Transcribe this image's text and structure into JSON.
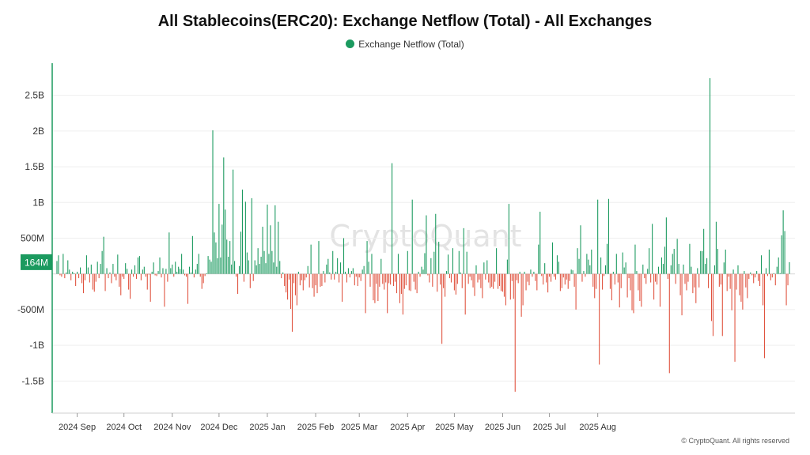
{
  "chart_data": {
    "type": "bar",
    "title": "All Stablecoins(ERC20): Exchange Netflow (Total) - All Exchanges",
    "legend": [
      {
        "name": "Exchange Netflow (Total)",
        "color": "#1b9a5f"
      }
    ],
    "legend_position": "top-center",
    "xlabel": "",
    "ylabel": "",
    "ylim": [
      -1950000000,
      2950000000
    ],
    "y_ticks": [
      {
        "value": 2500000000,
        "label": "2.5B"
      },
      {
        "value": 2000000000,
        "label": "2B"
      },
      {
        "value": 1500000000,
        "label": "1.5B"
      },
      {
        "value": 1000000000,
        "label": "1B"
      },
      {
        "value": 500000000,
        "label": "500M"
      },
      {
        "value": -500000000,
        "label": "-500M"
      },
      {
        "value": -1000000000,
        "label": "-1B"
      },
      {
        "value": -1500000000,
        "label": "-1.5B"
      }
    ],
    "x_ticks": [
      {
        "date": "2024-09-01",
        "label": "2024 Sep"
      },
      {
        "date": "2024-10-01",
        "label": "2024 Oct"
      },
      {
        "date": "2024-11-01",
        "label": "2024 Nov"
      },
      {
        "date": "2024-12-01",
        "label": "2024 Dec"
      },
      {
        "date": "2025-01-01",
        "label": "2025 Jan"
      },
      {
        "date": "2025-02-01",
        "label": "2025 Feb"
      },
      {
        "date": "2025-03-01",
        "label": "2025 Mar"
      },
      {
        "date": "2025-04-01",
        "label": "2025 Apr"
      },
      {
        "date": "2025-05-01",
        "label": "2025 May"
      },
      {
        "date": "2025-06-01",
        "label": "2025 Jun"
      },
      {
        "date": "2025-07-01",
        "label": "2025 Jul"
      },
      {
        "date": "2025-08-01",
        "label": "2025 Aug"
      }
    ],
    "x_start": "2024-08-19",
    "latest_value_label": "164M",
    "grid": {
      "horizontal": true,
      "vertical": false
    },
    "positive_color": "#1b9a5f",
    "negative_color": "#e0533f",
    "values": [
      180000000,
      260000000,
      -20000000,
      -40000000,
      280000000,
      -60000000,
      20000000,
      190000000,
      60000000,
      -90000000,
      30000000,
      10000000,
      -170000000,
      30000000,
      -60000000,
      90000000,
      -130000000,
      -270000000,
      -90000000,
      260000000,
      90000000,
      -120000000,
      130000000,
      -220000000,
      -250000000,
      -110000000,
      170000000,
      -60000000,
      140000000,
      320000000,
      520000000,
      -240000000,
      80000000,
      -60000000,
      20000000,
      -130000000,
      140000000,
      -40000000,
      -90000000,
      270000000,
      -180000000,
      -300000000,
      -40000000,
      -70000000,
      150000000,
      70000000,
      -220000000,
      -350000000,
      60000000,
      -40000000,
      120000000,
      -70000000,
      230000000,
      250000000,
      -90000000,
      60000000,
      100000000,
      -40000000,
      -220000000,
      -10000000,
      -390000000,
      30000000,
      160000000,
      -20000000,
      -30000000,
      40000000,
      230000000,
      -50000000,
      80000000,
      -460000000,
      70000000,
      -110000000,
      580000000,
      80000000,
      130000000,
      -40000000,
      170000000,
      30000000,
      100000000,
      70000000,
      280000000,
      60000000,
      -20000000,
      -40000000,
      -420000000,
      100000000,
      20000000,
      530000000,
      -50000000,
      60000000,
      140000000,
      280000000,
      -40000000,
      -210000000,
      -130000000,
      -30000000,
      10000000,
      250000000,
      200000000,
      170000000,
      2010000000,
      580000000,
      440000000,
      220000000,
      980000000,
      230000000,
      690000000,
      1630000000,
      900000000,
      480000000,
      240000000,
      460000000,
      130000000,
      1460000000,
      180000000,
      -40000000,
      -280000000,
      110000000,
      590000000,
      1180000000,
      -110000000,
      1010000000,
      300000000,
      190000000,
      -200000000,
      1060000000,
      -100000000,
      190000000,
      120000000,
      360000000,
      140000000,
      240000000,
      660000000,
      320000000,
      150000000,
      970000000,
      280000000,
      680000000,
      320000000,
      160000000,
      960000000,
      100000000,
      730000000,
      180000000,
      -60000000,
      20000000,
      -170000000,
      -260000000,
      -360000000,
      -80000000,
      -490000000,
      -810000000,
      -130000000,
      -300000000,
      -440000000,
      30000000,
      -160000000,
      -90000000,
      -230000000,
      -90000000,
      -50000000,
      110000000,
      -190000000,
      410000000,
      -200000000,
      -320000000,
      -160000000,
      -270000000,
      460000000,
      -180000000,
      -170000000,
      40000000,
      -120000000,
      130000000,
      210000000,
      20000000,
      -80000000,
      320000000,
      -80000000,
      30000000,
      220000000,
      -120000000,
      160000000,
      -390000000,
      500000000,
      30000000,
      -120000000,
      80000000,
      -50000000,
      40000000,
      80000000,
      -160000000,
      -40000000,
      -170000000,
      -50000000,
      -100000000,
      60000000,
      110000000,
      -550000000,
      460000000,
      170000000,
      -180000000,
      280000000,
      -370000000,
      -410000000,
      -140000000,
      -380000000,
      -180000000,
      210000000,
      -140000000,
      -220000000,
      -120000000,
      -550000000,
      -130000000,
      -150000000,
      1550000000,
      -170000000,
      -110000000,
      -270000000,
      280000000,
      -410000000,
      -280000000,
      -570000000,
      -210000000,
      -160000000,
      320000000,
      -230000000,
      -240000000,
      1040000000,
      -110000000,
      -220000000,
      -270000000,
      30000000,
      -40000000,
      100000000,
      60000000,
      290000000,
      820000000,
      -20000000,
      -120000000,
      220000000,
      -180000000,
      310000000,
      840000000,
      -250000000,
      450000000,
      -150000000,
      -980000000,
      -200000000,
      -320000000,
      40000000,
      270000000,
      -60000000,
      -120000000,
      360000000,
      -230000000,
      -290000000,
      -140000000,
      320000000,
      20000000,
      -200000000,
      640000000,
      -570000000,
      310000000,
      -140000000,
      -40000000,
      -90000000,
      -190000000,
      -310000000,
      120000000,
      -120000000,
      -80000000,
      -200000000,
      -340000000,
      160000000,
      -80000000,
      190000000,
      -120000000,
      -200000000,
      -180000000,
      -210000000,
      -110000000,
      360000000,
      -210000000,
      -170000000,
      -240000000,
      -250000000,
      -320000000,
      -440000000,
      200000000,
      980000000,
      -360000000,
      -100000000,
      -350000000,
      -1650000000,
      -90000000,
      -130000000,
      30000000,
      -600000000,
      -440000000,
      30000000,
      -230000000,
      -110000000,
      -160000000,
      60000000,
      -40000000,
      30000000,
      -100000000,
      -230000000,
      410000000,
      870000000,
      -30000000,
      -150000000,
      150000000,
      -120000000,
      -260000000,
      -40000000,
      -110000000,
      440000000,
      -40000000,
      -80000000,
      260000000,
      170000000,
      -240000000,
      -200000000,
      -50000000,
      -150000000,
      -80000000,
      -210000000,
      -100000000,
      60000000,
      50000000,
      -180000000,
      -500000000,
      360000000,
      210000000,
      680000000,
      -110000000,
      40000000,
      -40000000,
      280000000,
      200000000,
      120000000,
      340000000,
      -180000000,
      -340000000,
      -210000000,
      1040000000,
      -1270000000,
      230000000,
      -220000000,
      -30000000,
      120000000,
      420000000,
      1050000000,
      -210000000,
      -370000000,
      30000000,
      -150000000,
      280000000,
      -120000000,
      -470000000,
      -200000000,
      300000000,
      90000000,
      160000000,
      -330000000,
      -60000000,
      -230000000,
      -510000000,
      -550000000,
      410000000,
      40000000,
      -230000000,
      -380000000,
      -460000000,
      130000000,
      -60000000,
      -140000000,
      70000000,
      360000000,
      -120000000,
      700000000,
      -360000000,
      -110000000,
      -150000000,
      100000000,
      -460000000,
      230000000,
      140000000,
      380000000,
      790000000,
      -70000000,
      -1390000000,
      120000000,
      280000000,
      350000000,
      -140000000,
      490000000,
      140000000,
      -300000000,
      -580000000,
      130000000,
      -140000000,
      -230000000,
      -110000000,
      420000000,
      100000000,
      -270000000,
      -190000000,
      -410000000,
      80000000,
      -190000000,
      320000000,
      320000000,
      630000000,
      140000000,
      220000000,
      -200000000,
      2740000000,
      -660000000,
      -870000000,
      120000000,
      730000000,
      350000000,
      -180000000,
      -150000000,
      -870000000,
      160000000,
      340000000,
      -240000000,
      -40000000,
      -210000000,
      -510000000,
      60000000,
      -1230000000,
      -220000000,
      120000000,
      -300000000,
      -390000000,
      -500000000,
      40000000,
      -190000000,
      -340000000,
      -70000000,
      20000000,
      -20000000,
      -130000000,
      -50000000,
      40000000,
      -100000000,
      -170000000,
      260000000,
      -440000000,
      -1180000000,
      80000000,
      -30000000,
      340000000,
      -90000000,
      -50000000,
      10000000,
      -160000000,
      100000000,
      230000000,
      10000000,
      540000000,
      890000000,
      600000000,
      -440000000,
      -160000000,
      164000000
    ]
  },
  "watermark": "CryptoQuant",
  "copyright": "© CryptoQuant. All rights reserved"
}
